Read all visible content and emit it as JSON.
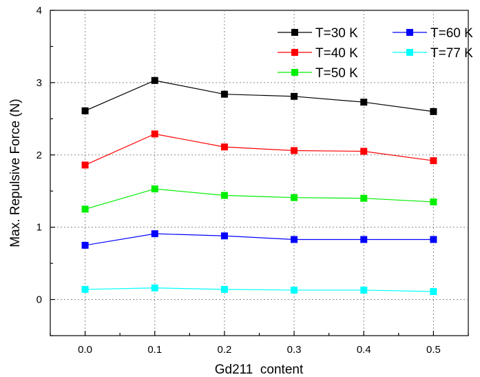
{
  "chart_data": {
    "type": "line",
    "xlabel": "Gd211  content",
    "ylabel": "Max. Repulsive Force (N)",
    "xlim": [
      -0.05,
      0.55
    ],
    "ylim": [
      -0.5,
      4
    ],
    "x_ticks": [
      "0.0",
      "0.1",
      "0.2",
      "0.3",
      "0.4",
      "0.5"
    ],
    "y_ticks": [
      "0",
      "1",
      "2",
      "3",
      "4"
    ],
    "grid": true,
    "legend_position": "top-right",
    "x": [
      0.0,
      0.1,
      0.2,
      0.3,
      0.4,
      0.5
    ],
    "series": [
      {
        "name": "T=30 K",
        "color": "#000000",
        "values": [
          2.61,
          3.03,
          2.84,
          2.81,
          2.73,
          2.6
        ]
      },
      {
        "name": "T=40 K",
        "color": "#ff0000",
        "values": [
          1.86,
          2.29,
          2.11,
          2.06,
          2.05,
          1.92
        ]
      },
      {
        "name": "T=50 K",
        "color": "#00ee00",
        "values": [
          1.25,
          1.53,
          1.44,
          1.41,
          1.4,
          1.35
        ]
      },
      {
        "name": "T=60 K",
        "color": "#0000ff",
        "values": [
          0.75,
          0.91,
          0.88,
          0.83,
          0.83,
          0.83
        ]
      },
      {
        "name": "T=77 K",
        "color": "#00ffff",
        "values": [
          0.14,
          0.16,
          0.14,
          0.13,
          0.13,
          0.11
        ]
      }
    ]
  }
}
